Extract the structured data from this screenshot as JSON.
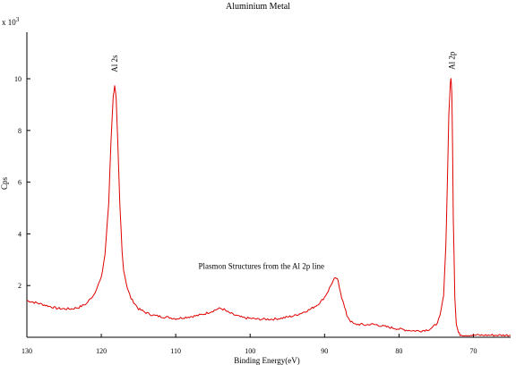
{
  "chart_data": {
    "type": "line",
    "title": "Aluminium Metal",
    "xlabel": "Binding Energy(eV)",
    "ylabel": "Cps",
    "y_multiplier_label": "x 10",
    "y_multiplier_exponent": "3",
    "x_reversed": true,
    "xlim": [
      130,
      65
    ],
    "ylim": [
      0,
      11.8
    ],
    "x_ticks": [
      130,
      120,
      110,
      100,
      90,
      80,
      70
    ],
    "y_ticks": [
      2,
      4,
      6,
      8,
      10
    ],
    "grid": false,
    "line_color": "#e00000",
    "series": [
      {
        "x": [
          130,
          129,
          128,
          127,
          126,
          125,
          124,
          123,
          122,
          121,
          120,
          119.5,
          119,
          118.7,
          118.4,
          118.2,
          118,
          117.8,
          117.5,
          117.2,
          117,
          116.5,
          116,
          115,
          114,
          113,
          112,
          111,
          110,
          109,
          108,
          107,
          106,
          105,
          104.5,
          104,
          103.5,
          103,
          102,
          101,
          100,
          99,
          98,
          97,
          96,
          95,
          94,
          93,
          92,
          91,
          90.5,
          90,
          89.5,
          89,
          88.7,
          88.4,
          88.2,
          88,
          87.7,
          87.3,
          87,
          86.5,
          86,
          85.5,
          85,
          84.5,
          84,
          83.5,
          83,
          82,
          81,
          80,
          79,
          78,
          77,
          76,
          75.5,
          75,
          74.5,
          74,
          73.7,
          73.5,
          73.3,
          73.1,
          73,
          72.9,
          72.8,
          72.7,
          72.5,
          72.3,
          72,
          71.8,
          71.5,
          71,
          70,
          68,
          66,
          65
        ],
        "y": [
          1.42,
          1.35,
          1.28,
          1.2,
          1.12,
          1.1,
          1.1,
          1.16,
          1.3,
          1.65,
          2.3,
          3.2,
          5.2,
          7.6,
          9.3,
          9.75,
          9.2,
          7.6,
          5.1,
          3.3,
          2.6,
          1.9,
          1.5,
          1.1,
          0.95,
          0.85,
          0.8,
          0.77,
          0.72,
          0.76,
          0.8,
          0.84,
          0.92,
          1.02,
          1.08,
          1.12,
          1.07,
          0.97,
          0.85,
          0.76,
          0.73,
          0.7,
          0.7,
          0.7,
          0.73,
          0.78,
          0.84,
          0.95,
          1.07,
          1.25,
          1.38,
          1.55,
          1.8,
          2.1,
          2.25,
          2.28,
          2.18,
          1.95,
          1.55,
          1.15,
          0.85,
          0.62,
          0.5,
          0.5,
          0.5,
          0.47,
          0.5,
          0.5,
          0.48,
          0.42,
          0.37,
          0.32,
          0.28,
          0.25,
          0.25,
          0.3,
          0.38,
          0.5,
          0.8,
          1.6,
          3.6,
          6.0,
          8.6,
          9.85,
          10.0,
          9.4,
          7.4,
          4.6,
          1.6,
          0.5,
          0.18,
          0.1,
          0.09,
          0.08,
          0.08,
          0.08,
          0.08,
          0.08
        ]
      }
    ],
    "annotations": [
      {
        "text": "Al 2s",
        "x": 118.2,
        "y": 10.25,
        "rotated": true
      },
      {
        "text": "Al 2p",
        "x": 72.9,
        "y": 10.35,
        "rotated": true
      },
      {
        "text": "Plasmon Structures from the Al 2p line",
        "x": 98.5,
        "y": 2.65,
        "rotated": false
      }
    ]
  }
}
